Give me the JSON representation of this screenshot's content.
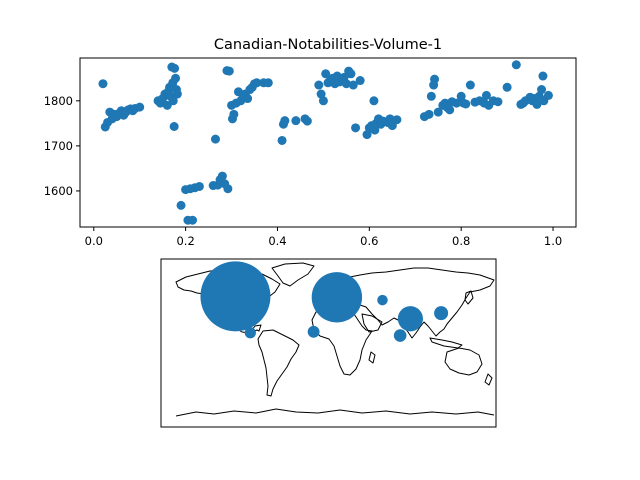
{
  "chart_data": [
    {
      "type": "scatter",
      "title": "Canadian-Notabilities-Volume-1",
      "xlabel": "",
      "ylabel": "",
      "xlim": [
        -0.03,
        1.05
      ],
      "ylim": [
        1520,
        1895
      ],
      "x_ticks": [
        0.0,
        0.2,
        0.4,
        0.6,
        0.8,
        1.0
      ],
      "x_tick_labels": [
        "0.0",
        "0.2",
        "0.4",
        "0.6",
        "0.8",
        "1.0"
      ],
      "y_ticks": [
        1600,
        1700,
        1800
      ],
      "y_tick_labels": [
        "1600",
        "1700",
        "1800"
      ],
      "grid": false,
      "marker_color": "#1f77b4",
      "points": [
        {
          "x": 0.02,
          "y": 1838
        },
        {
          "x": 0.025,
          "y": 1742
        },
        {
          "x": 0.03,
          "y": 1752
        },
        {
          "x": 0.035,
          "y": 1775
        },
        {
          "x": 0.04,
          "y": 1760
        },
        {
          "x": 0.045,
          "y": 1770
        },
        {
          "x": 0.05,
          "y": 1765
        },
        {
          "x": 0.055,
          "y": 1772
        },
        {
          "x": 0.06,
          "y": 1778
        },
        {
          "x": 0.065,
          "y": 1768
        },
        {
          "x": 0.07,
          "y": 1775
        },
        {
          "x": 0.075,
          "y": 1780
        },
        {
          "x": 0.08,
          "y": 1782
        },
        {
          "x": 0.085,
          "y": 1778
        },
        {
          "x": 0.09,
          "y": 1783
        },
        {
          "x": 0.1,
          "y": 1786
        },
        {
          "x": 0.14,
          "y": 1800
        },
        {
          "x": 0.145,
          "y": 1795
        },
        {
          "x": 0.15,
          "y": 1805
        },
        {
          "x": 0.155,
          "y": 1815
        },
        {
          "x": 0.16,
          "y": 1790
        },
        {
          "x": 0.162,
          "y": 1820
        },
        {
          "x": 0.165,
          "y": 1830
        },
        {
          "x": 0.167,
          "y": 1810
        },
        {
          "x": 0.17,
          "y": 1875
        },
        {
          "x": 0.172,
          "y": 1840
        },
        {
          "x": 0.173,
          "y": 1800
        },
        {
          "x": 0.175,
          "y": 1743
        },
        {
          "x": 0.176,
          "y": 1872
        },
        {
          "x": 0.178,
          "y": 1850
        },
        {
          "x": 0.18,
          "y": 1825
        },
        {
          "x": 0.182,
          "y": 1815
        },
        {
          "x": 0.19,
          "y": 1568
        },
        {
          "x": 0.2,
          "y": 1603
        },
        {
          "x": 0.205,
          "y": 1535
        },
        {
          "x": 0.21,
          "y": 1605
        },
        {
          "x": 0.215,
          "y": 1535
        },
        {
          "x": 0.22,
          "y": 1607
        },
        {
          "x": 0.23,
          "y": 1610
        },
        {
          "x": 0.26,
          "y": 1612
        },
        {
          "x": 0.265,
          "y": 1715
        },
        {
          "x": 0.27,
          "y": 1613
        },
        {
          "x": 0.275,
          "y": 1625
        },
        {
          "x": 0.28,
          "y": 1633
        },
        {
          "x": 0.285,
          "y": 1616
        },
        {
          "x": 0.29,
          "y": 1867
        },
        {
          "x": 0.292,
          "y": 1605
        },
        {
          "x": 0.295,
          "y": 1866
        },
        {
          "x": 0.3,
          "y": 1790
        },
        {
          "x": 0.302,
          "y": 1760
        },
        {
          "x": 0.305,
          "y": 1770
        },
        {
          "x": 0.31,
          "y": 1795
        },
        {
          "x": 0.315,
          "y": 1820
        },
        {
          "x": 0.32,
          "y": 1800
        },
        {
          "x": 0.325,
          "y": 1812
        },
        {
          "x": 0.33,
          "y": 1815
        },
        {
          "x": 0.335,
          "y": 1805
        },
        {
          "x": 0.34,
          "y": 1825
        },
        {
          "x": 0.345,
          "y": 1830
        },
        {
          "x": 0.35,
          "y": 1838
        },
        {
          "x": 0.355,
          "y": 1840
        },
        {
          "x": 0.37,
          "y": 1840
        },
        {
          "x": 0.38,
          "y": 1840
        },
        {
          "x": 0.41,
          "y": 1712
        },
        {
          "x": 0.413,
          "y": 1748
        },
        {
          "x": 0.416,
          "y": 1756
        },
        {
          "x": 0.44,
          "y": 1756
        },
        {
          "x": 0.46,
          "y": 1760
        },
        {
          "x": 0.465,
          "y": 1755
        },
        {
          "x": 0.49,
          "y": 1835
        },
        {
          "x": 0.495,
          "y": 1815
        },
        {
          "x": 0.5,
          "y": 1800
        },
        {
          "x": 0.505,
          "y": 1860
        },
        {
          "x": 0.51,
          "y": 1840
        },
        {
          "x": 0.515,
          "y": 1845
        },
        {
          "x": 0.52,
          "y": 1850
        },
        {
          "x": 0.525,
          "y": 1838
        },
        {
          "x": 0.53,
          "y": 1855
        },
        {
          "x": 0.535,
          "y": 1842
        },
        {
          "x": 0.54,
          "y": 1848
        },
        {
          "x": 0.545,
          "y": 1852
        },
        {
          "x": 0.55,
          "y": 1838
        },
        {
          "x": 0.555,
          "y": 1866
        },
        {
          "x": 0.56,
          "y": 1860
        },
        {
          "x": 0.565,
          "y": 1835
        },
        {
          "x": 0.57,
          "y": 1740
        },
        {
          "x": 0.58,
          "y": 1845
        },
        {
          "x": 0.595,
          "y": 1725
        },
        {
          "x": 0.6,
          "y": 1740
        },
        {
          "x": 0.605,
          "y": 1745
        },
        {
          "x": 0.61,
          "y": 1800
        },
        {
          "x": 0.612,
          "y": 1735
        },
        {
          "x": 0.615,
          "y": 1750
        },
        {
          "x": 0.62,
          "y": 1760
        },
        {
          "x": 0.625,
          "y": 1748
        },
        {
          "x": 0.63,
          "y": 1755
        },
        {
          "x": 0.64,
          "y": 1752
        },
        {
          "x": 0.645,
          "y": 1760
        },
        {
          "x": 0.65,
          "y": 1745
        },
        {
          "x": 0.66,
          "y": 1758
        },
        {
          "x": 0.72,
          "y": 1765
        },
        {
          "x": 0.73,
          "y": 1770
        },
        {
          "x": 0.735,
          "y": 1810
        },
        {
          "x": 0.74,
          "y": 1835
        },
        {
          "x": 0.742,
          "y": 1848
        },
        {
          "x": 0.75,
          "y": 1775
        },
        {
          "x": 0.76,
          "y": 1790
        },
        {
          "x": 0.765,
          "y": 1795
        },
        {
          "x": 0.77,
          "y": 1785
        },
        {
          "x": 0.775,
          "y": 1780
        },
        {
          "x": 0.78,
          "y": 1798
        },
        {
          "x": 0.79,
          "y": 1795
        },
        {
          "x": 0.8,
          "y": 1810
        },
        {
          "x": 0.805,
          "y": 1795
        },
        {
          "x": 0.81,
          "y": 1793
        },
        {
          "x": 0.82,
          "y": 1835
        },
        {
          "x": 0.83,
          "y": 1797
        },
        {
          "x": 0.84,
          "y": 1800
        },
        {
          "x": 0.85,
          "y": 1795
        },
        {
          "x": 0.855,
          "y": 1812
        },
        {
          "x": 0.86,
          "y": 1790
        },
        {
          "x": 0.87,
          "y": 1800
        },
        {
          "x": 0.88,
          "y": 1798
        },
        {
          "x": 0.9,
          "y": 1830
        },
        {
          "x": 0.92,
          "y": 1880
        },
        {
          "x": 0.93,
          "y": 1792
        },
        {
          "x": 0.935,
          "y": 1795
        },
        {
          "x": 0.94,
          "y": 1800
        },
        {
          "x": 0.95,
          "y": 1808
        },
        {
          "x": 0.955,
          "y": 1800
        },
        {
          "x": 0.96,
          "y": 1805
        },
        {
          "x": 0.965,
          "y": 1792
        },
        {
          "x": 0.97,
          "y": 1810
        },
        {
          "x": 0.975,
          "y": 1825
        },
        {
          "x": 0.978,
          "y": 1855
        },
        {
          "x": 0.98,
          "y": 1800
        },
        {
          "x": 0.99,
          "y": 1812
        }
      ]
    },
    {
      "type": "bubble-map",
      "title": "",
      "projection": "equirectangular",
      "lon_range": [
        -180,
        180
      ],
      "lat_range": [
        -90,
        90
      ],
      "marker_color": "#1f77b4",
      "bubbles": [
        {
          "lon": -100,
          "lat": 50,
          "relative_size": 1.0
        },
        {
          "lon": 9,
          "lat": 49,
          "relative_size": 0.72
        },
        {
          "lon": 88,
          "lat": 26,
          "relative_size": 0.36
        },
        {
          "lon": 77,
          "lat": 8,
          "relative_size": 0.18
        },
        {
          "lon": 121,
          "lat": 32,
          "relative_size": 0.2
        },
        {
          "lon": -84,
          "lat": 11,
          "relative_size": 0.16
        },
        {
          "lon": -16,
          "lat": 12,
          "relative_size": 0.17
        },
        {
          "lon": 58,
          "lat": 46,
          "relative_size": 0.15
        }
      ]
    }
  ]
}
